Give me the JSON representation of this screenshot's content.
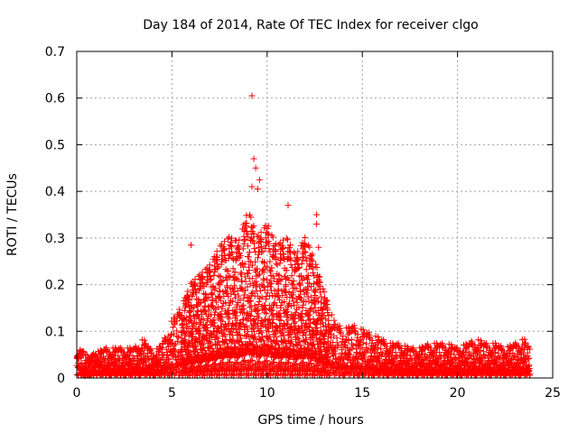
{
  "chart_data": {
    "type": "scatter",
    "title": "Day 184 of 2014, Rate Of TEC Index for receiver clgo",
    "xlabel": "GPS time / hours",
    "ylabel": "ROTI / TECUs",
    "xlim": [
      0,
      25
    ],
    "ylim": [
      0,
      0.7
    ],
    "xticks": [
      0,
      5,
      10,
      15,
      20,
      25
    ],
    "yticks": [
      0,
      0.1,
      0.2,
      0.3,
      0.4,
      0.5,
      0.6,
      0.7
    ],
    "xtick_labels": [
      "0",
      "5",
      "10",
      "15",
      "20",
      "25"
    ],
    "ytick_labels": [
      "0",
      "0.1",
      "0.2",
      "0.3",
      "0.4",
      "0.5",
      "0.6",
      "0.7"
    ],
    "grid": true,
    "marker": "plus",
    "marker_color": "#ff0000",
    "series": [
      {
        "name": "ROTI",
        "envelope": {
          "x": [
            0,
            0.5,
            1,
            1.5,
            2,
            2.5,
            3,
            3.5,
            4,
            4.5,
            5,
            5.5,
            6,
            6.5,
            7,
            7.5,
            8,
            8.5,
            9,
            9.5,
            10,
            10.5,
            11,
            11.5,
            12,
            12.5,
            13,
            13.5,
            14,
            14.5,
            15,
            15.5,
            16,
            16.5,
            17,
            17.5,
            18,
            18.5,
            19,
            19.5,
            20,
            20.5,
            21,
            21.5,
            22,
            22.5,
            23,
            23.5,
            23.8
          ],
          "y": [
            0.06,
            0.05,
            0.05,
            0.06,
            0.06,
            0.06,
            0.06,
            0.08,
            0.05,
            0.07,
            0.12,
            0.15,
            0.2,
            0.22,
            0.24,
            0.28,
            0.3,
            0.29,
            0.36,
            0.3,
            0.33,
            0.28,
            0.3,
            0.26,
            0.3,
            0.25,
            0.18,
            0.12,
            0.1,
            0.11,
            0.1,
            0.09,
            0.08,
            0.07,
            0.07,
            0.06,
            0.06,
            0.07,
            0.07,
            0.07,
            0.06,
            0.07,
            0.08,
            0.07,
            0.07,
            0.06,
            0.07,
            0.08,
            0.06
          ]
        },
        "notable_points": [
          {
            "x": 9.2,
            "y": 0.605
          },
          {
            "x": 9.3,
            "y": 0.47
          },
          {
            "x": 9.4,
            "y": 0.45
          },
          {
            "x": 9.6,
            "y": 0.425
          },
          {
            "x": 9.2,
            "y": 0.41
          },
          {
            "x": 9.5,
            "y": 0.405
          },
          {
            "x": 11.1,
            "y": 0.37
          },
          {
            "x": 12.6,
            "y": 0.35
          },
          {
            "x": 12.6,
            "y": 0.33
          },
          {
            "x": 6.0,
            "y": 0.285
          },
          {
            "x": 12.7,
            "y": 0.28
          }
        ]
      }
    ]
  }
}
